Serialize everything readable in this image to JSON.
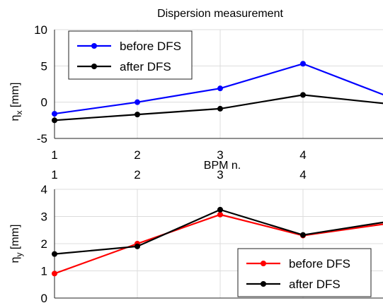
{
  "chart_data": [
    {
      "type": "line",
      "title": "Dispersion measurement",
      "xlabel": "BPM n.",
      "ylabel": "η",
      "ylabel_sub": "x",
      "ylabel_unit": " [mm]",
      "x": [
        1,
        2,
        3,
        4,
        5
      ],
      "xticks": [
        1,
        2,
        3,
        4
      ],
      "xlim": [
        1,
        5
      ],
      "ylim": [
        -5,
        10
      ],
      "yticks": [
        -5,
        0,
        5,
        10
      ],
      "grid": true,
      "legend_position": "top-left",
      "series": [
        {
          "name": "before DFS",
          "color": "#0000ff",
          "values": [
            -1.6,
            0.0,
            1.9,
            5.3,
            0.9
          ]
        },
        {
          "name": "after DFS",
          "color": "#000000",
          "values": [
            -2.5,
            -1.7,
            -0.9,
            1.0,
            -0.2
          ]
        }
      ]
    },
    {
      "type": "line",
      "title": "",
      "xlabel": "",
      "ylabel": "η",
      "ylabel_sub": "y",
      "ylabel_unit": " [mm]",
      "x": [
        1,
        2,
        3,
        4,
        5
      ],
      "xticks": [
        1,
        2,
        3,
        4
      ],
      "xlim": [
        1,
        5
      ],
      "ylim": [
        0,
        4
      ],
      "yticks": [
        0,
        1,
        2,
        3,
        4
      ],
      "grid": true,
      "legend_position": "bottom-right",
      "series": [
        {
          "name": "before DFS",
          "color": "#ff0000",
          "values": [
            0.9,
            2.0,
            3.07,
            2.3,
            2.73
          ]
        },
        {
          "name": "after DFS",
          "color": "#000000",
          "values": [
            1.62,
            1.9,
            3.25,
            2.32,
            2.8
          ]
        }
      ]
    }
  ]
}
